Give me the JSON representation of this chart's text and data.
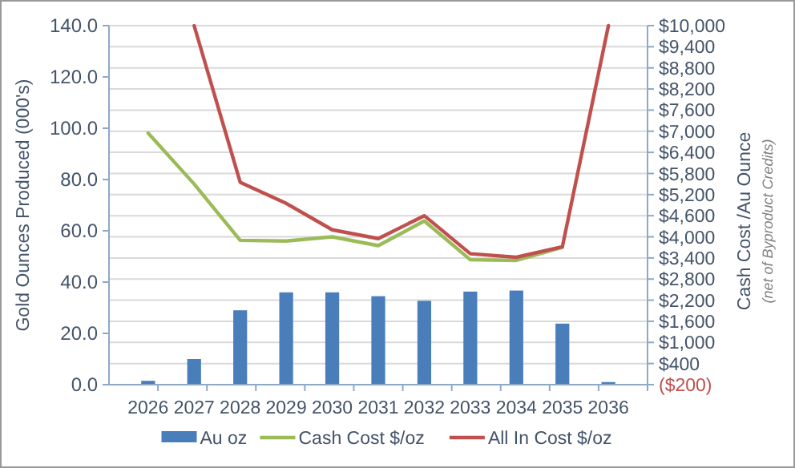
{
  "chart_data": {
    "type": "bar",
    "categories": [
      "2026",
      "2027",
      "2028",
      "2029",
      "2030",
      "2031",
      "2032",
      "2033",
      "2034",
      "2035",
      "2036"
    ],
    "ylabel": "Gold Ounces Produced (000's)",
    "y2label": "Cash Cost /Au Ounce",
    "annotations": [
      "(net of Byproduct Credits)"
    ],
    "ylim": [
      0,
      140
    ],
    "yticks": [
      {
        "value": 0,
        "label": "0.0"
      },
      {
        "value": 20,
        "label": "20.0"
      },
      {
        "value": 40,
        "label": "40.0"
      },
      {
        "value": 60,
        "label": "60.0"
      },
      {
        "value": 80,
        "label": "80.0"
      },
      {
        "value": 100,
        "label": "100.0"
      },
      {
        "value": 120,
        "label": "120.0"
      },
      {
        "value": 140,
        "label": "140.0"
      }
    ],
    "y2lim": [
      -200,
      10000
    ],
    "y2ticks": [
      {
        "value": -200,
        "label": "($200)"
      },
      {
        "value": 400,
        "label": "$400"
      },
      {
        "value": 1000,
        "label": "$1,000"
      },
      {
        "value": 1600,
        "label": "$1,600"
      },
      {
        "value": 2200,
        "label": "$2,200"
      },
      {
        "value": 2800,
        "label": "$2,800"
      },
      {
        "value": 3400,
        "label": "$3,400"
      },
      {
        "value": 4000,
        "label": "$4,000"
      },
      {
        "value": 4600,
        "label": "$4,600"
      },
      {
        "value": 5200,
        "label": "$5,200"
      },
      {
        "value": 5800,
        "label": "$5,800"
      },
      {
        "value": 6400,
        "label": "$6,400"
      },
      {
        "value": 7000,
        "label": "$7,000"
      },
      {
        "value": 7600,
        "label": "$7,600"
      },
      {
        "value": 8200,
        "label": "$8,200"
      },
      {
        "value": 8800,
        "label": "$8,800"
      },
      {
        "value": 9400,
        "label": "$9,400"
      },
      {
        "value": 10000,
        "label": "$10,000"
      }
    ],
    "grid": "y",
    "legend": "bottom",
    "series": [
      {
        "name": "Au oz",
        "color": "#4a7ebb",
        "values": [
          1.5,
          10,
          29,
          36,
          36,
          34.5,
          32.7,
          36.3,
          36.7,
          23.8,
          1
        ]
      },
      {
        "name": "Cash Cost $/oz",
        "color": "#9bbb59",
        "type": "line",
        "axis": "y2",
        "values": [
          6950,
          5500,
          3900,
          3880,
          4000,
          3750,
          4450,
          3350,
          3330,
          3700,
          null
        ]
      },
      {
        "name": "All In Cost $/oz",
        "color": "#c0504d",
        "type": "line",
        "axis": "y2",
        "values": [
          null,
          10000,
          5550,
          4950,
          4200,
          3950,
          4600,
          3520,
          3420,
          3720,
          10000
        ]
      }
    ]
  }
}
